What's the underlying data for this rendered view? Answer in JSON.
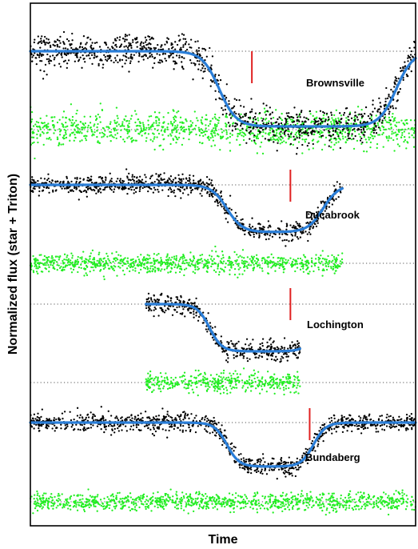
{
  "chart_data": {
    "type": "scatter",
    "xlabel": "Time",
    "ylabel": "Normalized flux (star + Triton)",
    "grid": false,
    "colors": {
      "data_points": "#000000",
      "residuals": "#22ee22",
      "model": "#2a7ed8",
      "midtime_marker": "#e02020",
      "baseline": "#555555"
    },
    "xlim": [
      0,
      100
    ],
    "panels": [
      {
        "name": "Brownsville",
        "x_range": [
          0,
          100
        ],
        "ingress_x": 49,
        "egress_x": 95,
        "midtime_x": 57.5,
        "transition_width": 2.2,
        "baseline_flux": 1.0,
        "min_flux": 0.0,
        "noise": 0.11,
        "residual_noise": 0.11
      },
      {
        "name": "Ducabrook",
        "x_range": [
          0,
          81
        ],
        "ingress_x": 51,
        "egress_x": 76,
        "midtime_x": 67.5,
        "transition_width": 2.0,
        "baseline_flux": 1.0,
        "min_flux": 0.0,
        "noise": 0.1,
        "residual_noise": 0.1
      },
      {
        "name": "Lochington",
        "x_range": [
          30,
          70
        ],
        "ingress_x": 46.5,
        "egress_x": 74.5,
        "midtime_x": 67.5,
        "transition_width": 1.6,
        "baseline_flux": 1.0,
        "min_flux": 0.0,
        "noise": 0.1,
        "residual_noise": 0.1
      },
      {
        "name": "Bundaberg",
        "x_range": [
          0,
          100
        ],
        "ingress_x": 51,
        "egress_x": 73.5,
        "midtime_x": 72.5,
        "transition_width": 1.6,
        "baseline_flux": 1.0,
        "min_flux": 0.0,
        "noise": 0.1,
        "residual_noise": 0.1
      }
    ]
  }
}
